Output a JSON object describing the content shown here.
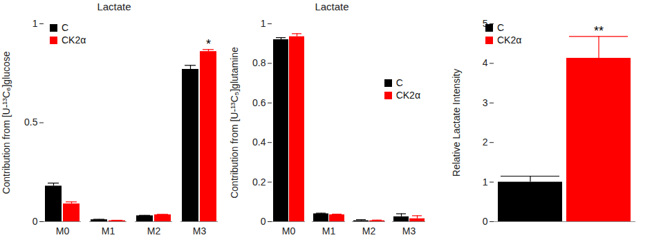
{
  "chart_data": [
    {
      "type": "bar",
      "title": "Lactate",
      "y_label": "Contribution from [U-¹³C₆]glucose",
      "categories": [
        "M0",
        "M1",
        "M2",
        "M3"
      ],
      "series": [
        {
          "name": "C",
          "color": "#000000",
          "values": [
            0.18,
            0.01,
            0.03,
            0.77
          ],
          "errors": [
            0.015,
            0.002,
            0.002,
            0.02
          ]
        },
        {
          "name": "CK2α",
          "color": "#ff0000",
          "values": [
            0.09,
            0.005,
            0.035,
            0.86
          ],
          "errors": [
            0.01,
            0.002,
            0.002,
            0.01
          ]
        }
      ],
      "ylim": [
        0,
        1
      ],
      "yticks": [
        0,
        0.5,
        1
      ],
      "legend": "top-left",
      "annotations": [
        {
          "text": "*",
          "x": "M3",
          "series": "CK2α"
        }
      ]
    },
    {
      "type": "bar",
      "title": "Lactate",
      "y_label": "Contribution from [U-¹³C₅]glutamine",
      "categories": [
        "M0",
        "M1",
        "M2",
        "M3"
      ],
      "series": [
        {
          "name": "C",
          "color": "#000000",
          "values": [
            0.92,
            0.04,
            0.005,
            0.025
          ],
          "errors": [
            0.01,
            0.003,
            0.005,
            0.015
          ]
        },
        {
          "name": "CK2α",
          "color": "#ff0000",
          "values": [
            0.935,
            0.035,
            0.005,
            0.015
          ],
          "errors": [
            0.015,
            0.003,
            0.003,
            0.015
          ]
        }
      ],
      "ylim": [
        0,
        1
      ],
      "yticks": [
        0,
        0.2,
        0.4,
        0.6,
        0.8,
        1
      ],
      "legend": "right",
      "annotations": []
    },
    {
      "type": "bar",
      "y_label": "Relative Lactate Intensity",
      "categories": [
        null
      ],
      "series": [
        {
          "name": "C",
          "color": "#000000",
          "values": [
            1.0
          ],
          "errors": [
            0.15
          ]
        },
        {
          "name": "CK2α",
          "color": "#ff0000",
          "values": [
            4.13
          ],
          "errors": [
            0.55
          ]
        }
      ],
      "ylim": [
        0,
        5
      ],
      "yticks": [
        0,
        1,
        2,
        3,
        4,
        5
      ],
      "legend": "top-left",
      "annotations": [
        {
          "text": "**",
          "x": null,
          "series": "CK2α"
        }
      ]
    }
  ]
}
